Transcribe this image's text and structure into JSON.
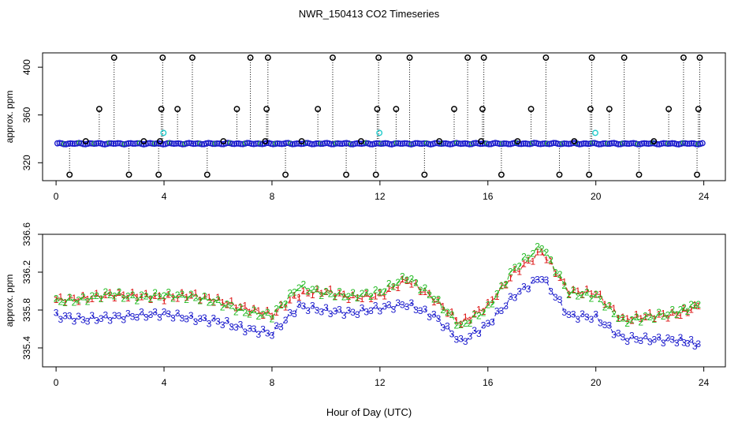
{
  "figure_title": "NWR_150413  CO2 Timeseries",
  "xlabel": "Hour of Day (UTC)",
  "colors": {
    "black": "#000000",
    "blue": "#1a1acc",
    "cyan": "#22cccc",
    "green": "#22bb22",
    "red": "#dd1111"
  },
  "chart_data": [
    {
      "type": "scatter",
      "title": "",
      "xlabel": "",
      "ylabel": "approx. ppm",
      "xlim": [
        -0.5,
        24.8
      ],
      "ylim": [
        305,
        412
      ],
      "xticks": [
        0,
        4,
        8,
        12,
        16,
        20,
        24
      ],
      "yticks": [
        320,
        360,
        400
      ],
      "baseline": 336,
      "series": [
        {
          "name": "black circles (high/low outliers)",
          "marker": "circle",
          "color": "#000000",
          "x": [
            0.5,
            1.1,
            1.6,
            2.15,
            2.7,
            3.25,
            3.8,
            3.85,
            3.9,
            3.95,
            4.5,
            5.05,
            5.6,
            6.2,
            6.7,
            7.2,
            7.75,
            7.8,
            7.85,
            8.5,
            9.1,
            9.7,
            10.25,
            10.75,
            11.3,
            11.85,
            11.9,
            11.95,
            12.6,
            13.1,
            13.65,
            14.2,
            14.75,
            15.25,
            15.75,
            15.8,
            15.85,
            16.5,
            17.1,
            17.6,
            18.15,
            18.65,
            19.2,
            19.75,
            19.8,
            19.85,
            20.5,
            21.05,
            21.6,
            22.15,
            22.7,
            23.25,
            23.75,
            23.8,
            23.85
          ],
          "y": [
            310,
            338,
            365,
            408,
            310,
            338,
            310,
            338,
            365,
            408,
            365,
            408,
            310,
            338,
            365,
            408,
            338,
            365,
            408,
            310,
            338,
            365,
            408,
            310,
            338,
            310,
            365,
            408,
            365,
            408,
            310,
            338,
            365,
            408,
            338,
            365,
            408,
            310,
            338,
            365,
            408,
            310,
            338,
            310,
            365,
            408,
            365,
            408,
            310,
            338,
            365,
            408,
            310,
            365,
            408
          ]
        },
        {
          "name": "cyan circles",
          "marker": "circle",
          "color": "#22cccc",
          "x": [
            3.98,
            11.98,
            19.98
          ],
          "y": [
            345,
            345,
            345
          ]
        },
        {
          "name": "blue circle band (dense ~336 ppm)",
          "marker": "circle",
          "color": "#1a1acc",
          "x_range": [
            0.05,
            23.95
          ],
          "y_approx": 336
        }
      ]
    },
    {
      "type": "scatter",
      "title": "",
      "xlabel": "Hour of Day (UTC)",
      "ylabel": "approx. ppm",
      "xlim": [
        -0.5,
        24.8
      ],
      "ylim": [
        335.2,
        336.6
      ],
      "xticks": [
        0,
        4,
        8,
        12,
        16,
        20,
        24
      ],
      "yticks": [
        335.4,
        335.8,
        336.2,
        336.6
      ],
      "series": [
        {
          "name": "1",
          "label": "1",
          "color": "#dd1111",
          "x": [
            0,
            1,
            2,
            3,
            4,
            5,
            6,
            7,
            8,
            9,
            10,
            11,
            12,
            13,
            14,
            15,
            16,
            17,
            18,
            19,
            20,
            21,
            22,
            23,
            23.8
          ],
          "y": [
            335.91,
            335.92,
            335.96,
            335.95,
            335.93,
            335.96,
            335.9,
            335.82,
            335.75,
            335.97,
            336.0,
            335.93,
            335.95,
            336.12,
            335.92,
            335.66,
            335.85,
            336.2,
            336.42,
            336.0,
            335.98,
            335.7,
            335.74,
            335.75,
            335.84
          ]
        },
        {
          "name": "2",
          "label": "2",
          "color": "#22bb22",
          "x": [
            0,
            1,
            2,
            3,
            4,
            5,
            6,
            7,
            8,
            9,
            10,
            11,
            12,
            13,
            14,
            15,
            16,
            17,
            18,
            19,
            20,
            21,
            22,
            23,
            23.8
          ],
          "y": [
            335.89,
            335.91,
            335.97,
            335.93,
            335.96,
            335.94,
            335.88,
            335.78,
            335.74,
            336.05,
            335.97,
            335.95,
            335.99,
            336.15,
            335.93,
            335.62,
            335.82,
            336.25,
            336.48,
            335.98,
            335.95,
            335.68,
            335.72,
            335.78,
            335.86
          ]
        },
        {
          "name": "3",
          "label": "3",
          "color": "#1a1acc",
          "x": [
            0,
            1,
            2,
            3,
            4,
            5,
            6,
            7,
            8,
            9,
            10,
            11,
            12,
            13,
            14,
            15,
            16,
            17,
            18,
            19,
            20,
            21,
            22,
            23,
            23.8
          ],
          "y": [
            335.74,
            335.7,
            335.72,
            335.74,
            335.76,
            335.71,
            335.68,
            335.6,
            335.55,
            335.84,
            335.79,
            335.77,
            335.82,
            335.86,
            335.74,
            335.46,
            335.65,
            335.96,
            336.15,
            335.74,
            335.72,
            335.5,
            335.49,
            335.48,
            335.44
          ]
        }
      ]
    }
  ]
}
